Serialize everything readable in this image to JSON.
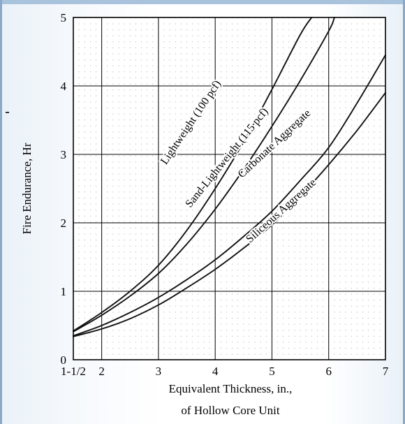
{
  "chart_data": {
    "type": "line",
    "title": "",
    "xlabel_line1": "Equivalent Thickness, in.,",
    "xlabel_line2": "of Hollow Core Unit",
    "ylabel": "Fire Endurance, Hr",
    "xlim": [
      1.5,
      7
    ],
    "ylim": [
      0,
      5
    ],
    "x_ticks": [
      {
        "value": 1.5,
        "label": "1-1/2"
      },
      {
        "value": 2,
        "label": "2"
      },
      {
        "value": 3,
        "label": "3"
      },
      {
        "value": 4,
        "label": "4"
      },
      {
        "value": 5,
        "label": "5"
      },
      {
        "value": 6,
        "label": "6"
      },
      {
        "value": 7,
        "label": "7"
      }
    ],
    "y_ticks": [
      {
        "value": 0,
        "label": "0"
      },
      {
        "value": 1,
        "label": "1"
      },
      {
        "value": 2,
        "label": "2"
      },
      {
        "value": 3,
        "label": "3"
      },
      {
        "value": 4,
        "label": "4"
      },
      {
        "value": 5,
        "label": "5"
      }
    ],
    "grid": true,
    "series": [
      {
        "name": "Lightweight (100 pcf)",
        "x": [
          1.5,
          2,
          2.5,
          3,
          3.5,
          4,
          4.5,
          5,
          5.5,
          5.7
        ],
        "y": [
          0.42,
          0.69,
          1.0,
          1.38,
          1.89,
          2.5,
          3.18,
          3.95,
          4.75,
          5.0
        ]
      },
      {
        "name": "Sand-Lightweight (115 pcf)",
        "x": [
          1.5,
          2,
          2.5,
          3,
          3.5,
          4,
          4.5,
          5,
          5.5,
          6,
          6.1
        ],
        "y": [
          0.41,
          0.65,
          0.93,
          1.26,
          1.69,
          2.2,
          2.78,
          3.41,
          4.08,
          4.8,
          5.0
        ]
      },
      {
        "name": "Carbonate Aggregate",
        "x": [
          1.5,
          2,
          2.5,
          3,
          3.5,
          4,
          4.5,
          5,
          5.5,
          6,
          6.5,
          7
        ],
        "y": [
          0.35,
          0.5,
          0.69,
          0.91,
          1.17,
          1.46,
          1.8,
          2.17,
          2.62,
          3.1,
          3.75,
          4.45
        ]
      },
      {
        "name": "Siliceous Aggregate",
        "x": [
          1.5,
          2,
          2.5,
          3,
          3.5,
          4,
          4.5,
          5,
          5.5,
          6,
          6.5,
          7
        ],
        "y": [
          0.34,
          0.45,
          0.6,
          0.8,
          1.05,
          1.32,
          1.63,
          1.97,
          2.39,
          2.85,
          3.35,
          3.9
        ]
      }
    ],
    "labels": [
      {
        "text": "Lightweight (100 pcf)",
        "x": 3.62,
        "y": 3.44,
        "angle": -56
      },
      {
        "text": "Sand-Lightweight (115 pcf)",
        "x": 4.25,
        "y": 2.92,
        "angle": -51
      },
      {
        "text": "Carbonate Aggregate",
        "x": 5.08,
        "y": 3.12,
        "angle": -43
      },
      {
        "text": "Siliceous Aggregate",
        "x": 5.2,
        "y": 2.14,
        "angle": -42
      }
    ]
  }
}
